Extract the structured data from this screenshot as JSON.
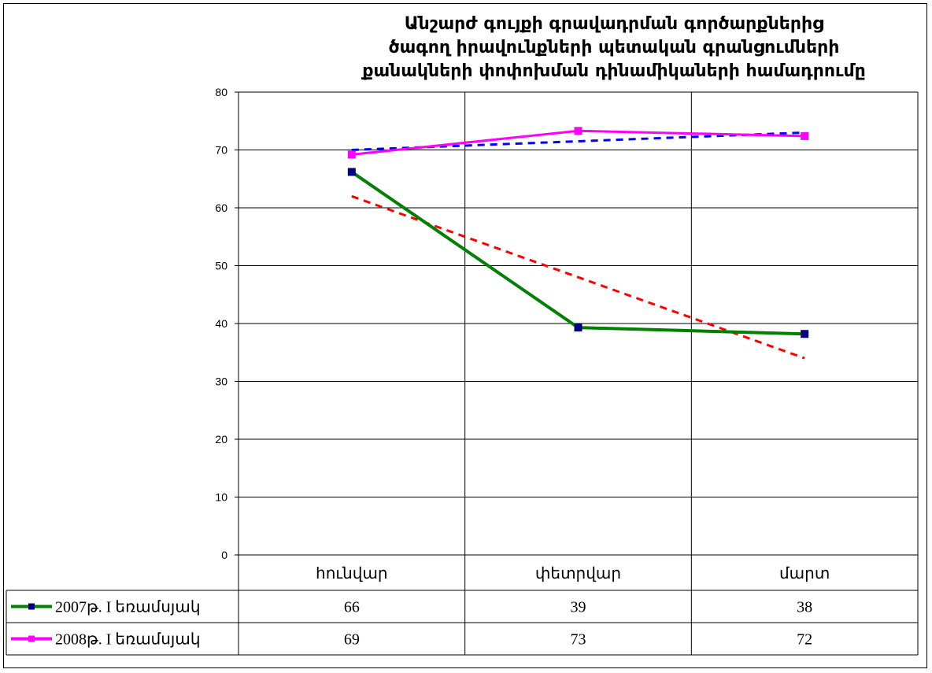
{
  "chart_data": {
    "type": "line",
    "title_lines": [
      "Անշարժ գույքի գրավադրման գործարքներից",
      "ծագող իրավունքների պետական գրանցումների",
      "քանակների փոփոխման դինամիկաների համադրումը"
    ],
    "categories": [
      "հունվար",
      "փետրվար",
      "մարտ"
    ],
    "ylim": [
      0,
      80
    ],
    "yticks": [
      0,
      10,
      20,
      30,
      40,
      50,
      60,
      70,
      80
    ],
    "grid": true,
    "legend": "data-table-left",
    "series": [
      {
        "name": "2007թ. I եռամսյակ",
        "values": [
          66,
          39,
          38
        ],
        "plot_values": [
          66.2,
          39.3,
          38.2
        ],
        "color": "#008000",
        "marker_color": "#000080"
      },
      {
        "name": "2008թ. I եռամսյակ",
        "values": [
          69,
          73,
          72
        ],
        "plot_values": [
          69.2,
          73.3,
          72.4
        ],
        "color": "#FF00FF",
        "marker_color": "#FF00FF"
      }
    ],
    "trendlines": [
      {
        "series": 0,
        "color": "#FF0000",
        "values": [
          62,
          48,
          34
        ]
      },
      {
        "series": 1,
        "color": "#0000FF",
        "values": [
          70,
          71.5,
          73
        ]
      }
    ]
  }
}
